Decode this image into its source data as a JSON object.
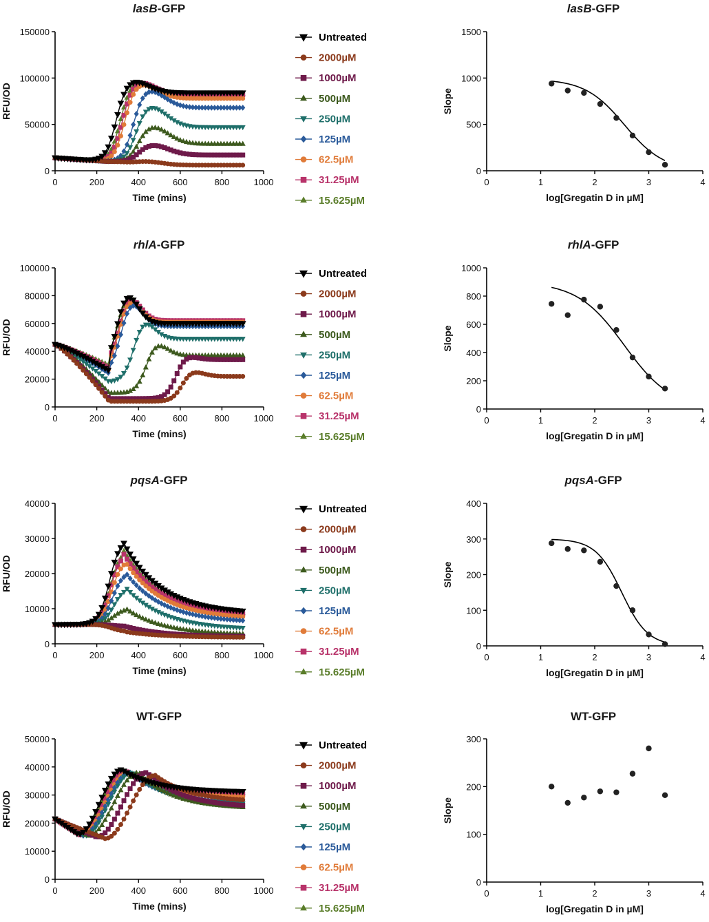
{
  "legend": [
    {
      "label": "Untreated",
      "color": "#000000",
      "marker": "triangle-down"
    },
    {
      "label": "2000µM",
      "color": "#8b3a1c",
      "marker": "circle"
    },
    {
      "label": "1000µM",
      "color": "#6e1a4a",
      "marker": "square"
    },
    {
      "label": "500µM",
      "color": "#3d5a1e",
      "marker": "triangle-up"
    },
    {
      "label": "250µM",
      "color": "#1f6f6a",
      "marker": "triangle-down"
    },
    {
      "label": "125µM",
      "color": "#2a5a9a",
      "marker": "diamond"
    },
    {
      "label": "62.5µM",
      "color": "#e07b39",
      "marker": "circle"
    },
    {
      "label": "31.25µM",
      "color": "#b8336a",
      "marker": "square"
    },
    {
      "label": "15.625µM",
      "color": "#5a7d2a",
      "marker": "triangle-up"
    }
  ],
  "chart_data": [
    {
      "type": "line",
      "id": "lasB-time",
      "title_italic": "lasB",
      "title_rest": "-GFP",
      "xlabel": "Time (mins)",
      "ylabel": "RFU/OD",
      "xlim": [
        0,
        1000
      ],
      "ylim": [
        0,
        150000
      ],
      "xticks": [
        0,
        200,
        400,
        600,
        800,
        1000
      ],
      "yticks": [
        0,
        50000,
        100000,
        150000
      ],
      "profile": {
        "base": 14000,
        "rise_at": 250
      },
      "series": [
        {
          "name": "Untreated",
          "peak_time": 360,
          "peak": 98000,
          "plateau": 84000
        },
        {
          "name": "2000µM",
          "peak_time": 430,
          "peak": 10000,
          "plateau": 6000
        },
        {
          "name": "1000µM",
          "peak_time": 460,
          "peak": 28000,
          "plateau": 17000
        },
        {
          "name": "500µM",
          "peak_time": 460,
          "peak": 48000,
          "plateau": 29000
        },
        {
          "name": "250µM",
          "peak_time": 450,
          "peak": 70000,
          "plateau": 47000
        },
        {
          "name": "125µM",
          "peak_time": 440,
          "peak": 88000,
          "plateau": 68000
        },
        {
          "name": "62.5µM",
          "peak_time": 400,
          "peak": 95000,
          "plateau": 78000
        },
        {
          "name": "31.25µM",
          "peak_time": 390,
          "peak": 97000,
          "plateau": 82000
        },
        {
          "name": "15.625µM",
          "peak_time": 380,
          "peak": 97000,
          "plateau": 83000
        }
      ]
    },
    {
      "type": "scatter",
      "id": "lasB-dose",
      "title_italic": "lasB",
      "title_rest": "-GFP",
      "xlabel": "log[Gregatin D in µM]",
      "ylabel": "Slope",
      "xlim": [
        0,
        4
      ],
      "ylim": [
        0,
        1500
      ],
      "xticks": [
        0,
        1,
        2,
        3,
        4
      ],
      "yticks": [
        0,
        500,
        1000,
        1500
      ],
      "points": [
        [
          1.2,
          940
        ],
        [
          1.5,
          865
        ],
        [
          1.8,
          840
        ],
        [
          2.1,
          720
        ],
        [
          2.4,
          570
        ],
        [
          2.7,
          380
        ],
        [
          3.0,
          200
        ],
        [
          3.3,
          65
        ]
      ],
      "fit": {
        "top": 990,
        "bottom": 0,
        "logIC50": 2.55,
        "hill": 1.2,
        "from": 1.2,
        "to": 3.3
      }
    },
    {
      "type": "line",
      "id": "rhlA-time",
      "title_italic": "rhlA",
      "title_rest": "-GFP",
      "xlabel": "Time (mins)",
      "ylabel": "RFU/OD",
      "xlim": [
        0,
        1000
      ],
      "ylim": [
        0,
        100000
      ],
      "xticks": [
        0,
        200,
        400,
        600,
        800,
        1000
      ],
      "yticks": [
        0,
        20000,
        40000,
        60000,
        80000,
        100000
      ],
      "profile": {
        "start": 45000,
        "dip_time": 260
      },
      "series": [
        {
          "name": "Untreated",
          "dip": 26000,
          "peak_time": 340,
          "peak": 82000,
          "plateau": 60000
        },
        {
          "name": "2000µM",
          "dip": 4000,
          "peak_time": 650,
          "peak": 26000,
          "plateau": 22000
        },
        {
          "name": "1000µM",
          "dip": 6000,
          "peak_time": 620,
          "peak": 37000,
          "plateau": 34000
        },
        {
          "name": "500µM",
          "dip": 10000,
          "peak_time": 480,
          "peak": 46000,
          "plateau": 37000
        },
        {
          "name": "250µM",
          "dip": 18000,
          "peak_time": 420,
          "peak": 62000,
          "plateau": 49000
        },
        {
          "name": "125µM",
          "dip": 24000,
          "peak_time": 360,
          "peak": 76000,
          "plateau": 58000
        },
        {
          "name": "62.5µM",
          "dip": 26000,
          "peak_time": 350,
          "peak": 78000,
          "plateau": 61000
        },
        {
          "name": "31.25µM",
          "dip": 28000,
          "peak_time": 350,
          "peak": 80000,
          "plateau": 62000
        },
        {
          "name": "15.625µM",
          "dip": 30000,
          "peak_time": 345,
          "peak": 81000,
          "plateau": 61000
        }
      ]
    },
    {
      "type": "scatter",
      "id": "rhlA-dose",
      "title_italic": "rhlA",
      "title_rest": "-GFP",
      "xlabel": "log[Gregatin D in µM]",
      "ylabel": "Slope",
      "xlim": [
        0,
        4
      ],
      "ylim": [
        0,
        1000
      ],
      "xticks": [
        0,
        1,
        2,
        3,
        4
      ],
      "yticks": [
        0,
        200,
        400,
        600,
        800,
        1000
      ],
      "points": [
        [
          1.2,
          745
        ],
        [
          1.5,
          665
        ],
        [
          1.8,
          775
        ],
        [
          2.1,
          725
        ],
        [
          2.4,
          560
        ],
        [
          2.7,
          365
        ],
        [
          3.0,
          230
        ],
        [
          3.3,
          145
        ]
      ],
      "fit": {
        "top": 900,
        "bottom": 0,
        "logIC50": 2.55,
        "hill": 1.0,
        "from": 1.2,
        "to": 3.3
      }
    },
    {
      "type": "line",
      "id": "pqsA-time",
      "title_italic": "pqsA",
      "title_rest": "-GFP",
      "xlabel": "Time (mins)",
      "ylabel": "RFU/OD",
      "xlim": [
        0,
        1000
      ],
      "ylim": [
        0,
        40000
      ],
      "xticks": [
        0,
        200,
        400,
        600,
        800,
        1000
      ],
      "yticks": [
        0,
        10000,
        20000,
        30000,
        40000
      ],
      "profile": {
        "start": 5000,
        "rise_at": 170
      },
      "series": [
        {
          "name": "Untreated",
          "peak_time": 320,
          "peak": 29800,
          "end": 8500
        },
        {
          "name": "2000µM",
          "peak_time": 330,
          "peak": 3500,
          "end": 1800
        },
        {
          "name": "1000µM",
          "peak_time": 335,
          "peak": 5000,
          "end": 2000
        },
        {
          "name": "500µM",
          "peak_time": 340,
          "peak": 10000,
          "end": 2500
        },
        {
          "name": "250µM",
          "peak_time": 340,
          "peak": 16000,
          "end": 4000
        },
        {
          "name": "125µM",
          "peak_time": 335,
          "peak": 20500,
          "end": 6000
        },
        {
          "name": "62.5µM",
          "peak_time": 330,
          "peak": 24000,
          "end": 7000
        },
        {
          "name": "31.25µM",
          "peak_time": 325,
          "peak": 26000,
          "end": 7800
        },
        {
          "name": "15.625µM",
          "peak_time": 325,
          "peak": 27000,
          "end": 8000
        }
      ]
    },
    {
      "type": "scatter",
      "id": "pqsA-dose",
      "title_italic": "pqsA",
      "title_rest": "-GFP",
      "xlabel": "log[Gregatin D in µM]",
      "ylabel": "Slope",
      "xlim": [
        0,
        4
      ],
      "ylim": [
        0,
        400
      ],
      "xticks": [
        0,
        1,
        2,
        3,
        4
      ],
      "yticks": [
        0,
        100,
        200,
        300,
        400
      ],
      "points": [
        [
          1.2,
          288
        ],
        [
          1.5,
          272
        ],
        [
          1.8,
          268
        ],
        [
          2.1,
          236
        ],
        [
          2.4,
          168
        ],
        [
          2.7,
          100
        ],
        [
          3.0,
          32
        ],
        [
          3.3,
          5
        ]
      ],
      "fit": {
        "top": 300,
        "bottom": 0,
        "logIC50": 2.5,
        "hill": 1.8,
        "from": 1.2,
        "to": 3.3
      }
    },
    {
      "type": "line",
      "id": "WT-time",
      "title_italic": "",
      "title_rest": "WT-GFP",
      "xlabel": "Time (mins)",
      "ylabel": "RFU/OD",
      "xlim": [
        0,
        1000
      ],
      "ylim": [
        0,
        50000
      ],
      "xticks": [
        0,
        200,
        400,
        600,
        800,
        1000
      ],
      "yticks": [
        0,
        10000,
        20000,
        30000,
        40000,
        50000
      ],
      "profile": {
        "start": 21500
      },
      "series": [
        {
          "name": "Untreated",
          "dip_time": 110,
          "dip": 16000,
          "peak_time": 320,
          "peak": 39000,
          "end": 31000
        },
        {
          "name": "2000µM",
          "dip_time": 240,
          "dip": 14500,
          "peak_time": 480,
          "peak": 37000,
          "end": 27500
        },
        {
          "name": "1000µM",
          "dip_time": 200,
          "dip": 15000,
          "peak_time": 440,
          "peak": 38000,
          "end": 25500
        },
        {
          "name": "500µM",
          "dip_time": 160,
          "dip": 15500,
          "peak_time": 400,
          "peak": 38000,
          "end": 25000
        },
        {
          "name": "250µM",
          "dip_time": 140,
          "dip": 15500,
          "peak_time": 370,
          "peak": 38000,
          "end": 26500
        },
        {
          "name": "125µM",
          "dip_time": 130,
          "dip": 15500,
          "peak_time": 360,
          "peak": 38000,
          "end": 27000
        },
        {
          "name": "62.5µM",
          "dip_time": 125,
          "dip": 15800,
          "peak_time": 350,
          "peak": 38000,
          "end": 29000
        },
        {
          "name": "31.25µM",
          "dip_time": 120,
          "dip": 15800,
          "peak_time": 340,
          "peak": 38500,
          "end": 30000
        },
        {
          "name": "15.625µM",
          "dip_time": 115,
          "dip": 16000,
          "peak_time": 330,
          "peak": 38500,
          "end": 30500
        }
      ]
    },
    {
      "type": "scatter",
      "id": "WT-dose",
      "title_italic": "",
      "title_rest": "WT-GFP",
      "xlabel": "log[Gregatin D in µM]",
      "ylabel": "Slope",
      "xlim": [
        0,
        4
      ],
      "ylim": [
        0,
        300
      ],
      "xticks": [
        0,
        1,
        2,
        3,
        4
      ],
      "yticks": [
        0,
        100,
        200,
        300
      ],
      "points": [
        [
          1.2,
          200
        ],
        [
          1.5,
          166
        ],
        [
          1.8,
          177
        ],
        [
          2.1,
          190
        ],
        [
          2.4,
          188
        ],
        [
          2.7,
          227
        ],
        [
          3.0,
          280
        ],
        [
          3.3,
          182
        ]
      ]
    }
  ]
}
